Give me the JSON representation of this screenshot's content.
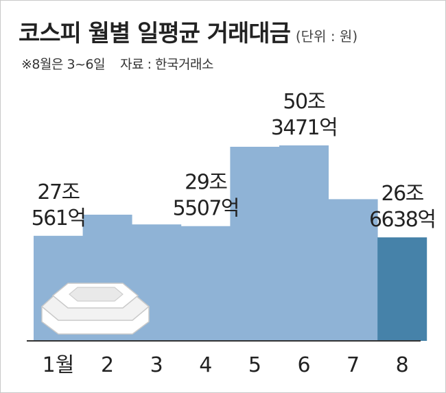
{
  "header": {
    "title": "코스피 월별 일평균 거래대금",
    "unit": "(단위 : 원)",
    "note": "※8월은 3~6일",
    "source": "자료 : 한국거래소"
  },
  "colors": {
    "bar": "#8fb3d6",
    "highlight_bar": "#4682a9",
    "axis": "#333333"
  },
  "chart_data": {
    "type": "bar",
    "title": "코스피 월별 일평균 거래대금",
    "unit": "(단위 : 원)",
    "categories": [
      "1월",
      "2",
      "3",
      "4",
      "5",
      "6",
      "7",
      "8"
    ],
    "values": [
      27.06,
      32.5,
      30.0,
      29.55,
      50.0,
      50.35,
      36.5,
      26.66
    ],
    "value_units": "조원 (approx., unlabeled bars estimated)",
    "data_labels": [
      {
        "index": 0,
        "line1": "27조",
        "line2": "561억"
      },
      {
        "index": 3,
        "line1": "29조",
        "line2": "5507억"
      },
      {
        "index": 5,
        "line1": "50조",
        "line2": "3471억"
      },
      {
        "index": 7,
        "line1": "26조",
        "line2": "6638억"
      }
    ],
    "highlight_index": 7,
    "ylim": [
      0,
      50.35
    ],
    "grid": false,
    "legend": "none"
  }
}
